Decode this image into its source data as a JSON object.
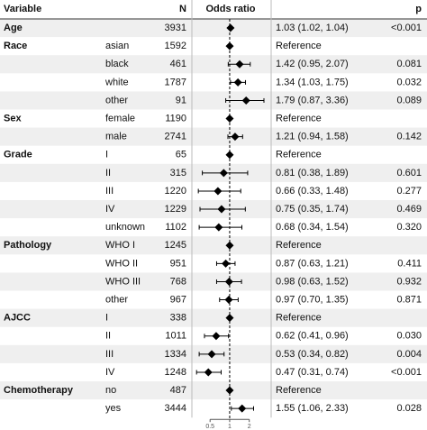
{
  "chart_data": {
    "type": "forest",
    "headers": {
      "variable": "Variable",
      "n": "N",
      "or": "Odds ratio",
      "p": "p"
    },
    "log_x": true,
    "xlim": [
      0.28,
      4.2
    ],
    "xticks": [
      0.5,
      1,
      2
    ],
    "ref_line": 1,
    "color": "#000000",
    "rows": [
      {
        "variable": "Age",
        "level": null,
        "n": 3931,
        "or": 1.03,
        "lower": 1.02,
        "upper": 1.04,
        "label": "1.03 (1.02, 1.04)",
        "p": "<0.001"
      },
      {
        "variable": "Race",
        "level": "asian",
        "n": 1592,
        "or": 1,
        "lower": null,
        "upper": null,
        "label": "Reference",
        "p": null
      },
      {
        "variable": null,
        "level": "black",
        "n": 461,
        "or": 1.42,
        "lower": 0.95,
        "upper": 2.07,
        "label": "1.42 (0.95, 2.07)",
        "p": "0.081"
      },
      {
        "variable": null,
        "level": "white",
        "n": 1787,
        "or": 1.34,
        "lower": 1.03,
        "upper": 1.75,
        "label": "1.34 (1.03, 1.75)",
        "p": "0.032"
      },
      {
        "variable": null,
        "level": "other",
        "n": 91,
        "or": 1.79,
        "lower": 0.87,
        "upper": 3.36,
        "label": "1.79 (0.87, 3.36)",
        "p": "0.089"
      },
      {
        "variable": "Sex",
        "level": "female",
        "n": 1190,
        "or": 1,
        "lower": null,
        "upper": null,
        "label": "Reference",
        "p": null
      },
      {
        "variable": null,
        "level": "male",
        "n": 2741,
        "or": 1.21,
        "lower": 0.94,
        "upper": 1.58,
        "label": "1.21 (0.94, 1.58)",
        "p": "0.142"
      },
      {
        "variable": "Grade",
        "level": "I",
        "n": 65,
        "or": 1,
        "lower": null,
        "upper": null,
        "label": "Reference",
        "p": null
      },
      {
        "variable": null,
        "level": "II",
        "n": 315,
        "or": 0.81,
        "lower": 0.38,
        "upper": 1.89,
        "label": "0.81 (0.38, 1.89)",
        "p": "0.601"
      },
      {
        "variable": null,
        "level": "III",
        "n": 1220,
        "or": 0.66,
        "lower": 0.33,
        "upper": 1.48,
        "label": "0.66 (0.33, 1.48)",
        "p": "0.277"
      },
      {
        "variable": null,
        "level": "IV",
        "n": 1229,
        "or": 0.75,
        "lower": 0.35,
        "upper": 1.74,
        "label": "0.75 (0.35, 1.74)",
        "p": "0.469"
      },
      {
        "variable": null,
        "level": "unknown",
        "n": 1102,
        "or": 0.68,
        "lower": 0.34,
        "upper": 1.54,
        "label": "0.68 (0.34, 1.54)",
        "p": "0.320"
      },
      {
        "variable": "Pathology",
        "level": "WHO I",
        "n": 1245,
        "or": 1,
        "lower": null,
        "upper": null,
        "label": "Reference",
        "p": null
      },
      {
        "variable": null,
        "level": "WHO II",
        "n": 951,
        "or": 0.87,
        "lower": 0.63,
        "upper": 1.21,
        "label": "0.87 (0.63, 1.21)",
        "p": "0.411"
      },
      {
        "variable": null,
        "level": "WHO III",
        "n": 768,
        "or": 0.98,
        "lower": 0.63,
        "upper": 1.52,
        "label": "0.98 (0.63, 1.52)",
        "p": "0.932"
      },
      {
        "variable": null,
        "level": "other",
        "n": 967,
        "or": 0.97,
        "lower": 0.7,
        "upper": 1.35,
        "label": "0.97 (0.70, 1.35)",
        "p": "0.871"
      },
      {
        "variable": "AJCC",
        "level": "I",
        "n": 338,
        "or": 1,
        "lower": null,
        "upper": null,
        "label": "Reference",
        "p": null
      },
      {
        "variable": null,
        "level": "II",
        "n": 1011,
        "or": 0.62,
        "lower": 0.41,
        "upper": 0.96,
        "label": "0.62 (0.41, 0.96)",
        "p": "0.030"
      },
      {
        "variable": null,
        "level": "III",
        "n": 1334,
        "or": 0.53,
        "lower": 0.34,
        "upper": 0.82,
        "label": "0.53 (0.34, 0.82)",
        "p": "0.004"
      },
      {
        "variable": null,
        "level": "IV",
        "n": 1248,
        "or": 0.47,
        "lower": 0.31,
        "upper": 0.74,
        "label": "0.47 (0.31, 0.74)",
        "p": "<0.001"
      },
      {
        "variable": "Chemotherapy",
        "level": "no",
        "n": 487,
        "or": 1,
        "lower": null,
        "upper": null,
        "label": "Reference",
        "p": null
      },
      {
        "variable": null,
        "level": "yes",
        "n": 3444,
        "or": 1.55,
        "lower": 1.06,
        "upper": 2.33,
        "label": "1.55 (1.06, 2.33)",
        "p": "0.028"
      }
    ]
  }
}
